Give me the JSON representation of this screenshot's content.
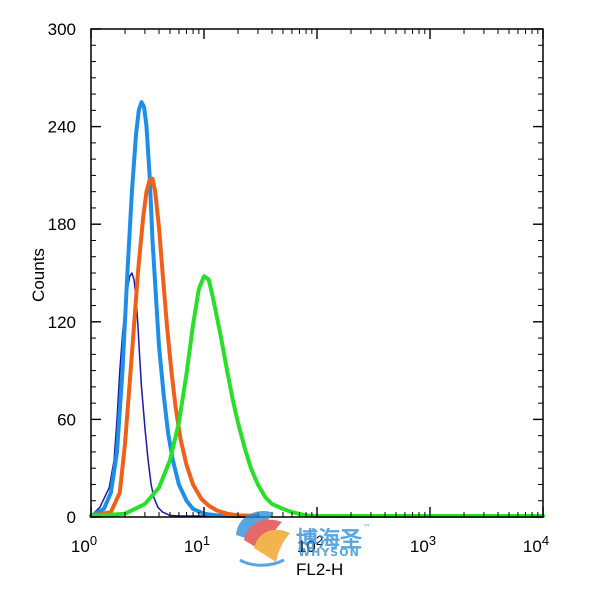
{
  "chart_data": {
    "type": "line",
    "xlabel": "FL2-H",
    "ylabel": "Counts",
    "x_scale": "log",
    "xlim": [
      1,
      10000
    ],
    "ylim": [
      0,
      300
    ],
    "x_ticks": [
      1,
      10,
      100,
      1000,
      10000
    ],
    "x_tick_labels": [
      {
        "base": "10",
        "exp": "0"
      },
      {
        "base": "10",
        "exp": "1"
      },
      {
        "base": "10",
        "exp": "2"
      },
      {
        "base": "10",
        "exp": "3"
      },
      {
        "base": "10",
        "exp": "4"
      }
    ],
    "y_ticks": [
      0,
      60,
      120,
      180,
      240,
      300
    ],
    "y_tick_labels": [
      "0",
      "60",
      "120",
      "180",
      "240",
      "300"
    ],
    "grid": false,
    "legend": "none",
    "series": [
      {
        "color": "#1a1aa6",
        "stroke": "thin",
        "x": [
          1.0,
          1.2,
          1.45,
          1.6,
          1.7,
          1.8,
          1.9,
          2.0,
          2.1,
          2.2,
          2.3,
          2.4,
          2.5,
          2.6,
          2.7,
          2.8,
          3.0,
          3.2,
          3.4,
          3.6,
          3.9,
          4.3,
          5.0,
          6.0,
          8.0,
          12.0
        ],
        "y": [
          0,
          6,
          18,
          35,
          60,
          90,
          112,
          128,
          140,
          148,
          150,
          146,
          135,
          118,
          98,
          80,
          55,
          35,
          20,
          12,
          6,
          3,
          1,
          0.5,
          0,
          0
        ]
      },
      {
        "color": "#1e8fe8",
        "stroke": "thick",
        "x": [
          1.0,
          1.3,
          1.5,
          1.7,
          1.9,
          2.1,
          2.3,
          2.5,
          2.65,
          2.8,
          2.95,
          3.1,
          3.3,
          3.5,
          3.8,
          4.0,
          4.4,
          4.8,
          5.3,
          6.0,
          7.0,
          8.0,
          10.0,
          13.0,
          18.0,
          30.0
        ],
        "y": [
          0,
          5,
          15,
          40,
          90,
          150,
          200,
          235,
          250,
          255,
          252,
          240,
          210,
          170,
          130,
          105,
          75,
          52,
          35,
          20,
          10,
          5,
          2,
          1,
          0,
          0
        ]
      },
      {
        "color": "#f06018",
        "stroke": "thick",
        "x": [
          1.0,
          1.5,
          1.8,
          2.0,
          2.3,
          2.6,
          2.9,
          3.1,
          3.3,
          3.5,
          3.7,
          4.0,
          4.3,
          4.7,
          5.1,
          5.6,
          6.2,
          7.0,
          8.0,
          9.5,
          11.0,
          13.0,
          16.0,
          20.0,
          30.0
        ],
        "y": [
          0,
          3,
          15,
          45,
          100,
          150,
          185,
          200,
          207,
          208,
          200,
          178,
          150,
          118,
          92,
          68,
          48,
          32,
          20,
          11,
          7,
          4,
          2,
          1,
          0
        ]
      },
      {
        "color": "#28e028",
        "stroke": "thick",
        "x": [
          1.0,
          2.0,
          3.0,
          4.0,
          5.0,
          6.0,
          7.0,
          8.0,
          9.0,
          10.0,
          11.0,
          12.0,
          14.0,
          16.0,
          18.0,
          20.0,
          23.0,
          26.0,
          30.0,
          35.0,
          40.0,
          50.0,
          60.0,
          80.0,
          100.0,
          200.0,
          10000.0
        ],
        "y": [
          0,
          2,
          8,
          18,
          35,
          58,
          88,
          118,
          140,
          148,
          146,
          135,
          112,
          90,
          72,
          58,
          42,
          30,
          20,
          12,
          8,
          5,
          3,
          1,
          0.5,
          0,
          0
        ]
      }
    ]
  },
  "watermark": {
    "chinese_text": "博海圣",
    "latin_text": "WHYSON",
    "trademark": "™"
  }
}
